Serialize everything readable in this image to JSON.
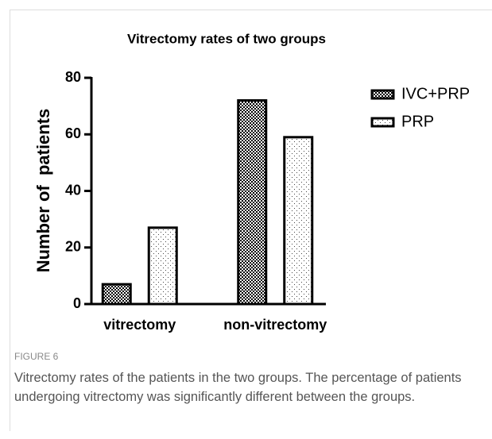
{
  "chart_data": {
    "type": "bar",
    "title": "Vitrectomy rates of two groups",
    "ylabel": "Number of  patients",
    "categories": [
      "vitrectomy",
      "non-vitrectomy"
    ],
    "series": [
      {
        "name": "IVC+PRP",
        "color": "#000000",
        "pattern": "checker",
        "values": [
          7,
          72
        ]
      },
      {
        "name": "PRP",
        "color": "#000000",
        "pattern": "dots",
        "values": [
          27,
          59
        ]
      }
    ],
    "ylim": [
      0,
      80
    ],
    "yticks": [
      0,
      20,
      40,
      60,
      80
    ],
    "legend": "right"
  },
  "figure": {
    "label": "FIGURE 6",
    "caption": "Vitrectomy rates of the patients in the two groups. The percentage of patients undergoing vitrectomy was significantly different between the groups."
  }
}
